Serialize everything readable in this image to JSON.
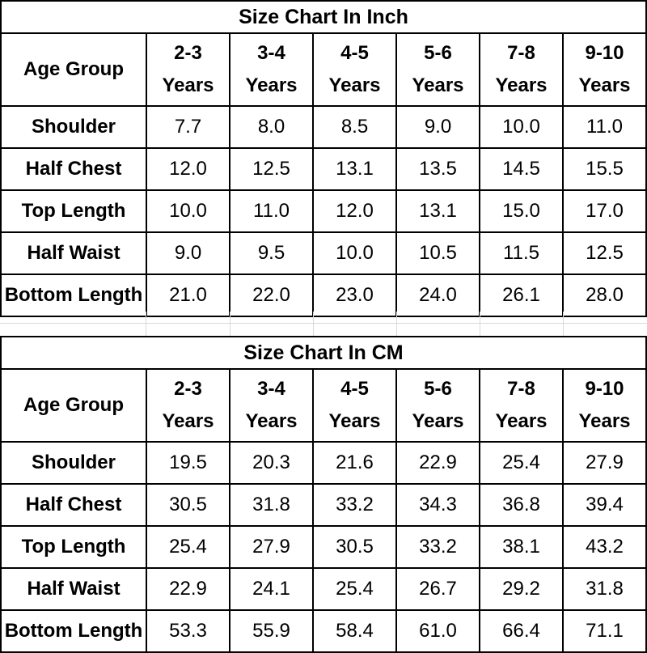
{
  "tables": [
    {
      "title": "Size Chart In Inch",
      "corner_label": "Age Group",
      "columns": [
        {
          "line1": "2-3",
          "line2": "Years"
        },
        {
          "line1": "3-4",
          "line2": "Years"
        },
        {
          "line1": "4-5",
          "line2": "Years"
        },
        {
          "line1": "5-6",
          "line2": "Years"
        },
        {
          "line1": "7-8",
          "line2": "Years"
        },
        {
          "line1": "9-10",
          "line2": "Years"
        }
      ],
      "rows": [
        {
          "label": "Shoulder",
          "values": [
            "7.7",
            "8.0",
            "8.5",
            "9.0",
            "10.0",
            "11.0"
          ]
        },
        {
          "label": "Half Chest",
          "values": [
            "12.0",
            "12.5",
            "13.1",
            "13.5",
            "14.5",
            "15.5"
          ]
        },
        {
          "label": "Top Length",
          "values": [
            "10.0",
            "11.0",
            "12.0",
            "13.1",
            "15.0",
            "17.0"
          ]
        },
        {
          "label": "Half Waist",
          "values": [
            "9.0",
            "9.5",
            "10.0",
            "10.5",
            "11.5",
            "12.5"
          ]
        },
        {
          "label": "Bottom Length",
          "values": [
            "21.0",
            "22.0",
            "23.0",
            "24.0",
            "26.1",
            "28.0"
          ]
        }
      ]
    },
    {
      "title": "Size Chart In CM",
      "corner_label": "Age Group",
      "columns": [
        {
          "line1": "2-3",
          "line2": "Years"
        },
        {
          "line1": "3-4",
          "line2": "Years"
        },
        {
          "line1": "4-5",
          "line2": "Years"
        },
        {
          "line1": "5-6",
          "line2": "Years"
        },
        {
          "line1": "7-8",
          "line2": "Years"
        },
        {
          "line1": "9-10",
          "line2": "Years"
        }
      ],
      "rows": [
        {
          "label": "Shoulder",
          "values": [
            "19.5",
            "20.3",
            "21.6",
            "22.9",
            "25.4",
            "27.9"
          ]
        },
        {
          "label": "Half Chest",
          "values": [
            "30.5",
            "31.8",
            "33.2",
            "34.3",
            "36.8",
            "39.4"
          ]
        },
        {
          "label": "Top Length",
          "values": [
            "25.4",
            "27.9",
            "30.5",
            "33.2",
            "38.1",
            "43.2"
          ]
        },
        {
          "label": "Half Waist",
          "values": [
            "22.9",
            "24.1",
            "25.4",
            "26.7",
            "29.2",
            "31.8"
          ]
        },
        {
          "label": "Bottom Length",
          "values": [
            "53.3",
            "55.9",
            "58.4",
            "61.0",
            "66.4",
            "71.1"
          ]
        }
      ]
    }
  ]
}
